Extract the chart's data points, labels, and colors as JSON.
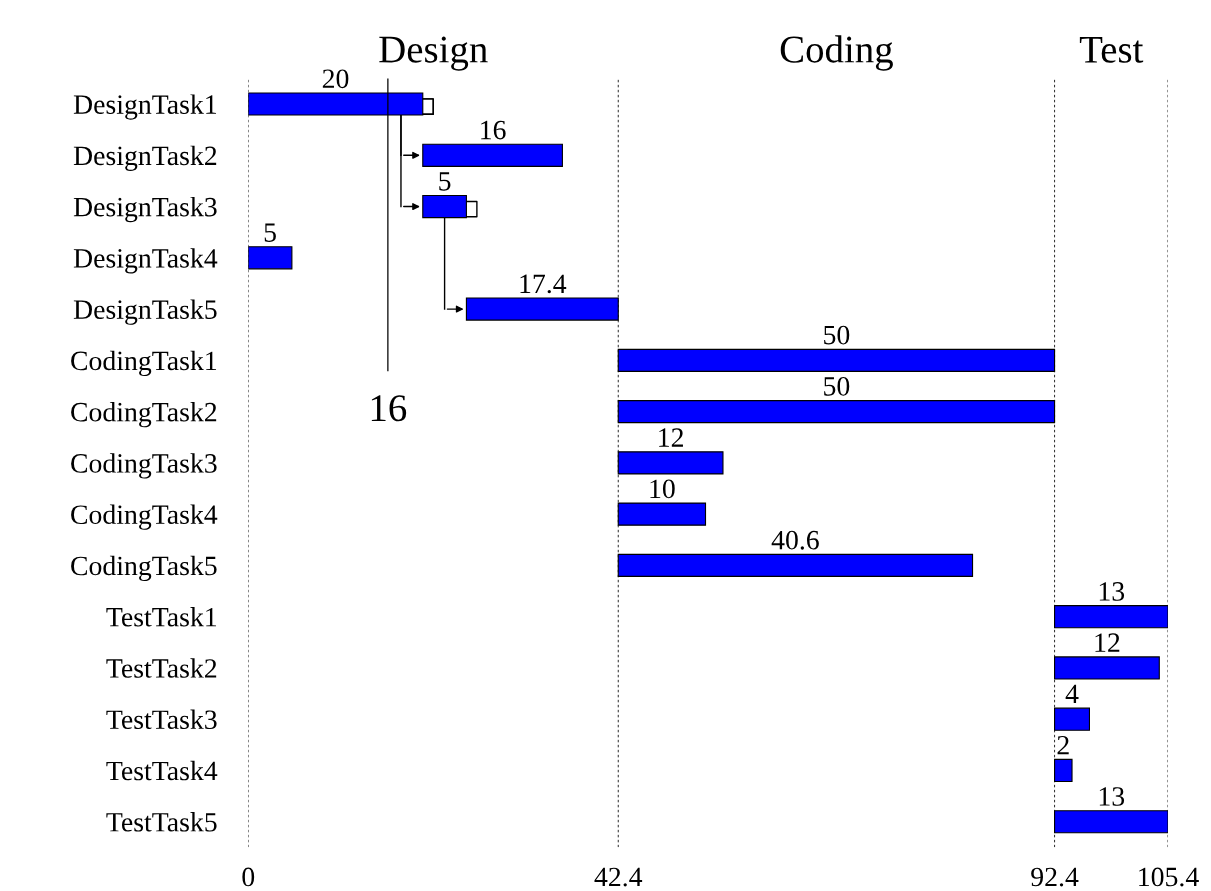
{
  "chart_data": {
    "type": "bar",
    "orientation": "horizontal",
    "categories": [
      "DesignTask1",
      "DesignTask2",
      "DesignTask3",
      "DesignTask4",
      "DesignTask5",
      "CodingTask1",
      "CodingTask2",
      "CodingTask3",
      "CodingTask4",
      "CodingTask5",
      "TestTask1",
      "TestTask2",
      "TestTask3",
      "TestTask4",
      "TestTask5"
    ],
    "base": [
      0,
      20,
      20,
      0,
      25,
      42.4,
      42.4,
      42.4,
      42.4,
      42.4,
      92.4,
      92.4,
      92.4,
      92.4,
      92.4
    ],
    "values": [
      20,
      16,
      5,
      5,
      17.4,
      50,
      50,
      12,
      10,
      40.6,
      13,
      12,
      4,
      2,
      13
    ],
    "color": "#0000ff",
    "data_labels": true,
    "xlim": [
      0,
      105.4
    ],
    "xticks": [
      0,
      42.4,
      92.4,
      105.4
    ],
    "grid": "x",
    "ref_lines": [
      {
        "axis": "x",
        "value": 16,
        "label": "16",
        "color": "#000000",
        "line_style": "solid"
      }
    ],
    "annotations": [
      "Design",
      "Coding",
      "Test"
    ]
  }
}
